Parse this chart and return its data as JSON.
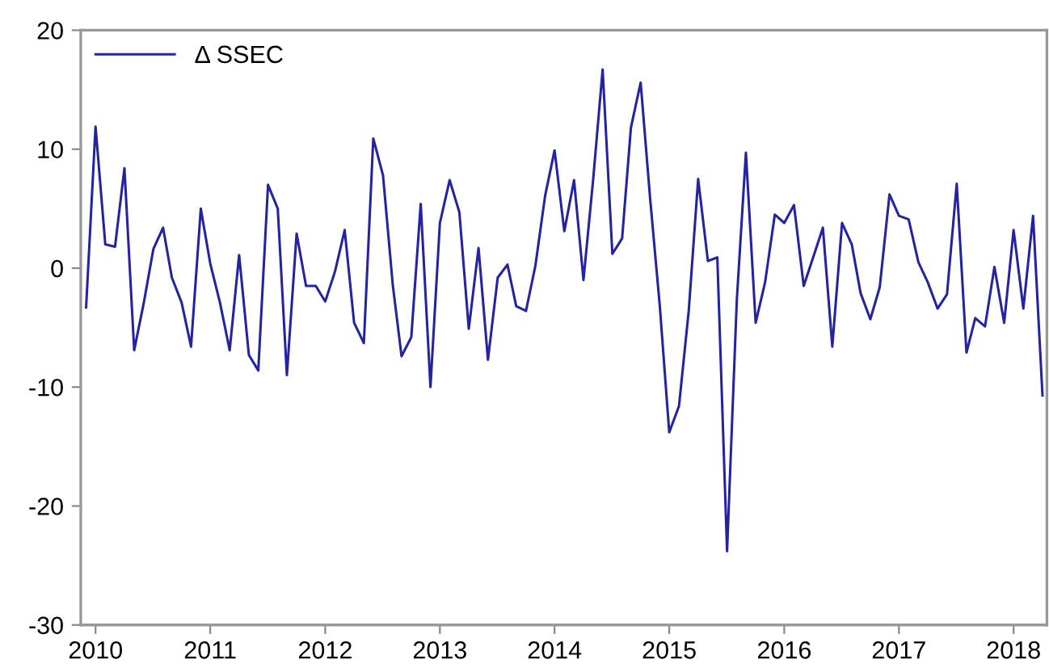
{
  "chart_data": {
    "type": "line",
    "x": [
      "2010-06",
      "2010-07",
      "2010-08",
      "2010-09",
      "2010-10",
      "2010-11",
      "2010-12",
      "2011-01",
      "2011-02",
      "2011-03",
      "2011-04",
      "2011-05",
      "2011-06",
      "2011-07",
      "2011-08",
      "2011-09",
      "2011-10",
      "2011-11",
      "2011-12",
      "2012-01",
      "2012-02",
      "2012-03",
      "2012-04",
      "2012-05",
      "2012-06",
      "2012-07",
      "2012-08",
      "2012-09",
      "2012-10",
      "2012-11",
      "2012-12",
      "2013-01",
      "2013-02",
      "2013-03",
      "2013-04",
      "2013-05",
      "2013-06",
      "2013-07",
      "2013-08",
      "2013-09",
      "2013-10",
      "2013-11",
      "2013-12",
      "2014-01",
      "2014-02",
      "2014-03",
      "2014-04",
      "2014-05",
      "2014-06",
      "2014-07",
      "2014-08",
      "2014-09",
      "2014-10",
      "2014-11",
      "2014-12",
      "2015-01",
      "2015-02",
      "2015-03",
      "2015-04",
      "2015-05",
      "2015-06",
      "2015-07",
      "2015-08",
      "2015-09",
      "2015-10",
      "2015-11",
      "2015-12",
      "2016-01",
      "2016-02",
      "2016-03",
      "2016-04",
      "2016-05",
      "2016-06",
      "2016-07",
      "2016-08",
      "2016-09",
      "2016-10",
      "2016-11",
      "2016-12",
      "2017-01",
      "2017-02",
      "2017-03",
      "2017-04",
      "2017-05",
      "2017-06",
      "2017-07",
      "2017-08",
      "2017-09",
      "2017-10",
      "2017-11",
      "2017-12",
      "2018-01",
      "2018-02",
      "2018-03",
      "2018-04",
      "2018-05",
      "2018-06",
      "2018-07",
      "2018-08",
      "2018-09",
      "2018-10"
    ],
    "series": [
      {
        "name": "Δ SSEC",
        "color": "#2424a0",
        "values": [
          -3.3,
          11.9,
          2.0,
          1.8,
          8.4,
          -6.9,
          -3.0,
          1.6,
          3.4,
          -0.8,
          -2.9,
          -6.6,
          5.0,
          0.4,
          -2.9,
          -6.9,
          1.1,
          -7.3,
          -8.6,
          7.0,
          5.0,
          -9.0,
          2.9,
          -1.5,
          -1.5,
          -2.8,
          -0.3,
          3.2,
          -4.6,
          -6.3,
          10.9,
          7.8,
          -1.4,
          -7.4,
          -5.8,
          5.4,
          -10.0,
          3.8,
          7.4,
          4.7,
          -5.1,
          1.7,
          -7.7,
          -0.8,
          0.3,
          -3.2,
          -3.6,
          0.2,
          6.1,
          9.9,
          3.1,
          7.4,
          -1.0,
          7.5,
          16.7,
          1.2,
          2.5,
          11.8,
          15.6,
          5.9,
          -3.2,
          -13.8,
          -11.6,
          -3.6,
          7.5,
          0.6,
          0.9,
          -23.8,
          -2.7,
          9.7,
          -4.6,
          -1.2,
          4.5,
          3.8,
          5.3,
          -1.5,
          0.9,
          3.4,
          -6.6,
          3.8,
          2.0,
          -2.1,
          -4.3,
          -1.6,
          6.2,
          4.4,
          4.1,
          0.5,
          -1.2,
          -3.4,
          -2.2,
          7.1,
          -7.1,
          -4.2,
          -4.9,
          0.1,
          -4.6,
          3.2,
          -3.4,
          4.4,
          -10.7
        ]
      }
    ],
    "xlim": [
      "2010-05-15",
      "2018-10-15"
    ],
    "xticks": [
      {
        "value": "2010-07",
        "label": "2010"
      },
      {
        "value": "2011-07",
        "label": "2011"
      },
      {
        "value": "2012-07",
        "label": "2012"
      },
      {
        "value": "2013-07",
        "label": "2013"
      },
      {
        "value": "2014-07",
        "label": "2014"
      },
      {
        "value": "2015-07",
        "label": "2015"
      },
      {
        "value": "2016-07",
        "label": "2016"
      },
      {
        "value": "2017-07",
        "label": "2017"
      },
      {
        "value": "2018-07",
        "label": "2018"
      }
    ],
    "ylim": [
      -30,
      20
    ],
    "yticks": [
      -30,
      -20,
      -10,
      0,
      10,
      20
    ],
    "legend": "top left",
    "grid": false,
    "marker": "none",
    "line_style": "solid"
  }
}
